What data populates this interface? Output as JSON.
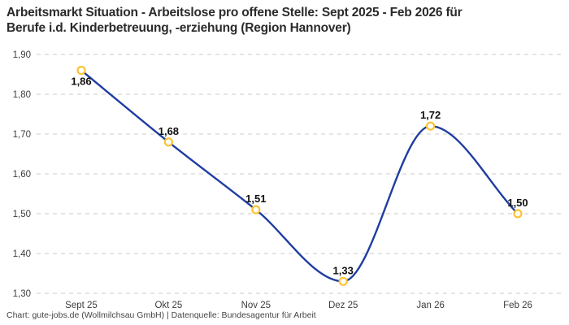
{
  "title": {
    "line1": "Arbeitsmarkt Situation - Arbeitslose pro offene Stelle: Sept 2025 - Feb 2026 für",
    "line2": "Berufe i.d. Kinderbetreuung, -erziehung (Region Hannover)"
  },
  "footer": "Chart: gute-jobs.de (Wollmilchsau GmbH) | Datenquelle: Bundesagentur für Arbeit",
  "chart_data": {
    "type": "line",
    "title": "Arbeitsmarkt Situation - Arbeitslose pro offene Stelle: Sept 2025 - Feb 2026 für Berufe i.d. Kinderbetreuung, -erziehung (Region Hannover)",
    "categories": [
      "Sept 25",
      "Okt 25",
      "Nov 25",
      "Dez 25",
      "Jan 26",
      "Feb 26"
    ],
    "values": [
      1.86,
      1.68,
      1.51,
      1.33,
      1.72,
      1.5
    ],
    "value_labels": [
      "1,86",
      "1,68",
      "1,51",
      "1,33",
      "1,72",
      "1,50"
    ],
    "label_positions": [
      "below",
      "above",
      "above",
      "above",
      "above",
      "above"
    ],
    "ylim": [
      1.3,
      1.9
    ],
    "ytick_step": 0.1,
    "ytick_labels": [
      "1,90",
      "1,80",
      "1,70",
      "1,60",
      "1,50",
      "1,40",
      "1,30"
    ],
    "xlabel": "",
    "ylabel": "",
    "grid": "horizontal-dashed",
    "legend": "none",
    "curve": "monotone",
    "colors": {
      "line": "#1f3da1",
      "marker_ring": "#fcc332",
      "marker_fill": "#ffffff",
      "gridline": "#cbcbcb",
      "tick_text": "#3d3d3d",
      "value_label_text": "#101010"
    }
  }
}
